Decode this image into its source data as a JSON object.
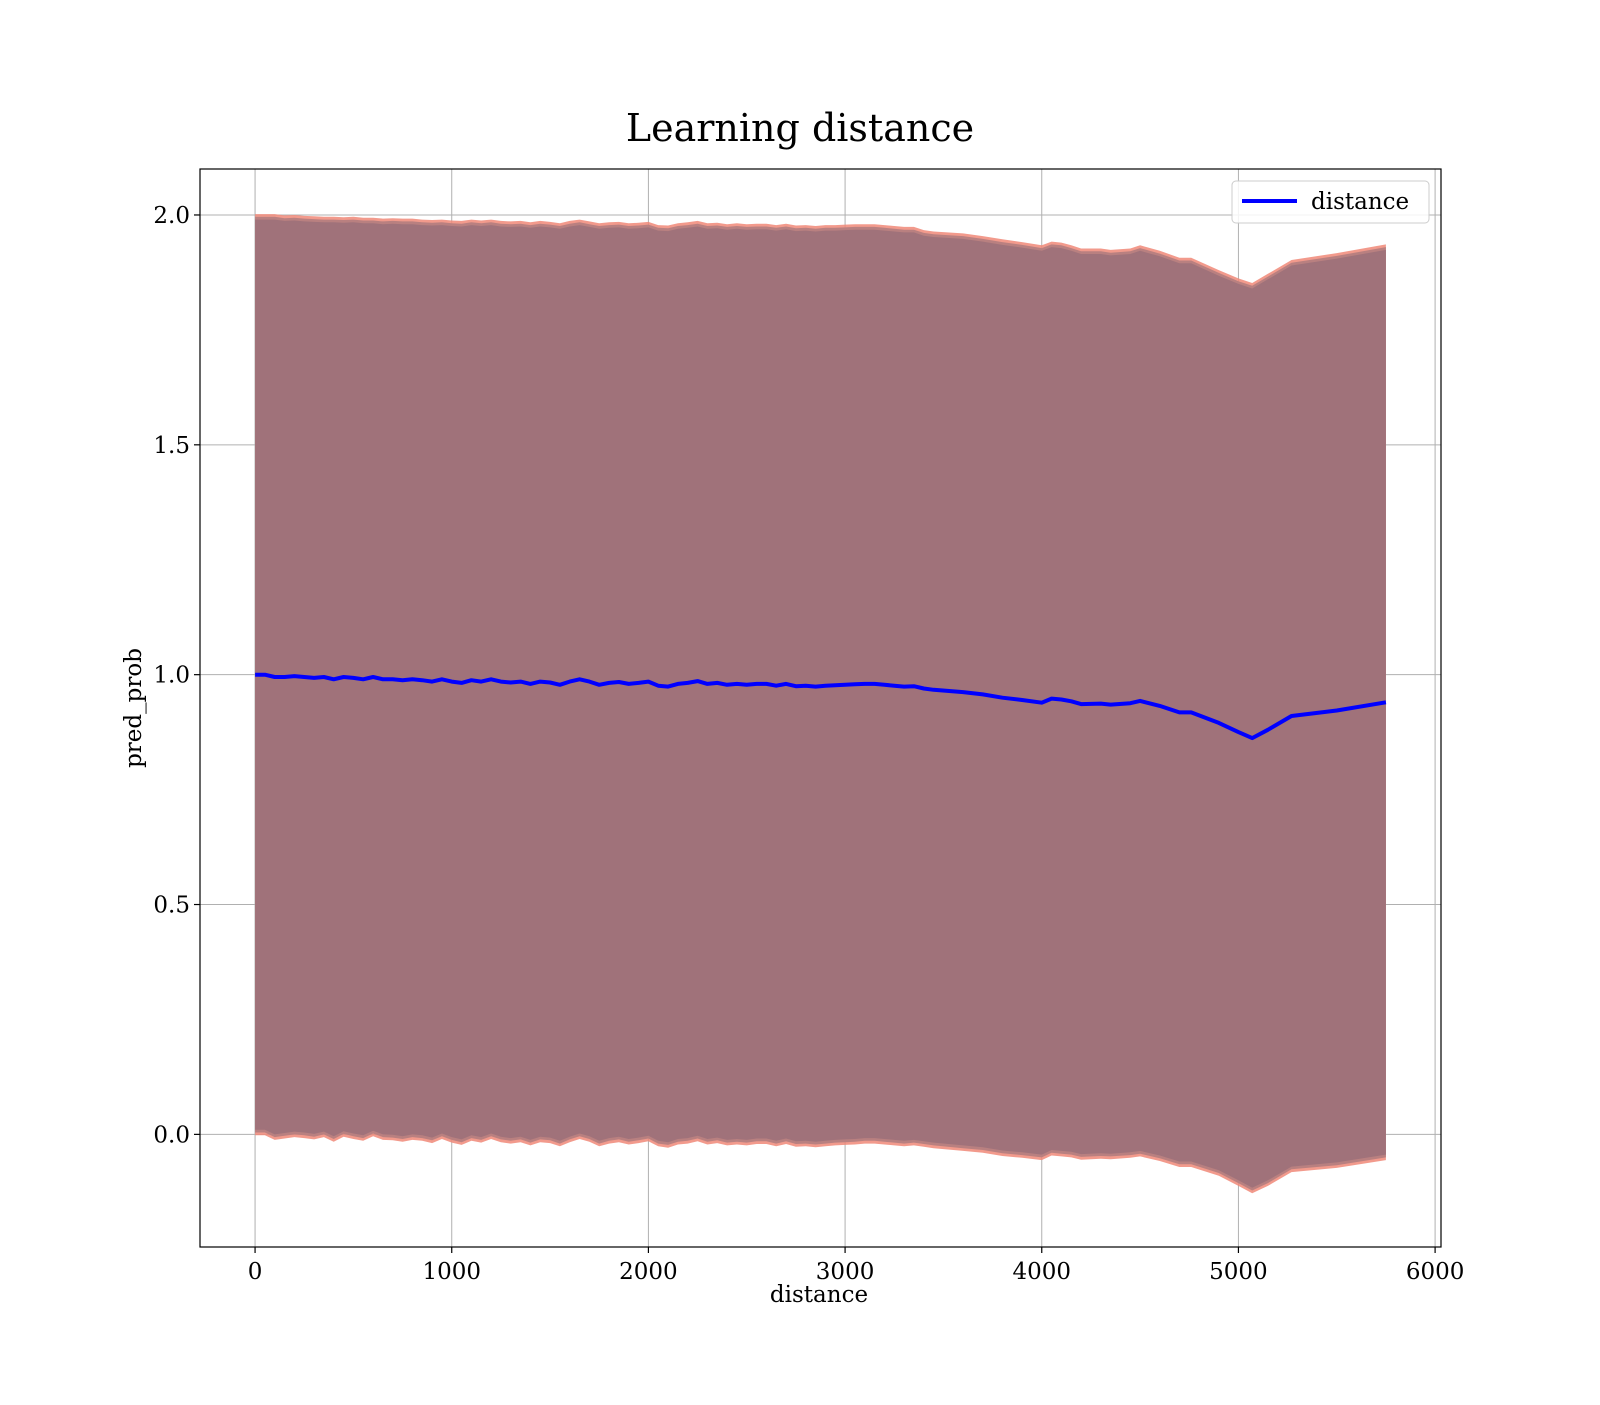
{
  "chart_data": {
    "type": "line",
    "title": "Learning distance",
    "xlabel": "distance",
    "ylabel": "pred_prob",
    "xlim": [
      -280,
      6030
    ],
    "ylim": [
      -0.245,
      2.1
    ],
    "xticks": [
      0,
      1000,
      2000,
      3000,
      4000,
      5000,
      6000
    ],
    "xtick_labels": [
      "0",
      "1000",
      "2000",
      "3000",
      "4000",
      "5000",
      "6000"
    ],
    "yticks": [
      0.0,
      0.5,
      1.0,
      1.5,
      2.0
    ],
    "ytick_labels": [
      "0.0",
      "0.5",
      "1.0",
      "1.5",
      "2.0"
    ],
    "grid": true,
    "legend": {
      "position": "top-right",
      "entries": [
        "distance"
      ]
    },
    "colors": {
      "line": "#0000ff",
      "band_fill": "#a0727a",
      "band_edge": "#f08878",
      "band_mid": "#b98080"
    },
    "series": [
      {
        "name": "distance",
        "x": [
          0,
          50,
          100,
          150,
          200,
          250,
          300,
          350,
          400,
          450,
          500,
          550,
          600,
          650,
          700,
          750,
          800,
          850,
          900,
          950,
          1000,
          1050,
          1100,
          1150,
          1200,
          1250,
          1300,
          1350,
          1400,
          1450,
          1500,
          1550,
          1600,
          1650,
          1700,
          1750,
          1800,
          1850,
          1900,
          1950,
          2000,
          2050,
          2100,
          2150,
          2200,
          2250,
          2300,
          2350,
          2400,
          2450,
          2500,
          2550,
          2600,
          2650,
          2700,
          2750,
          2800,
          2850,
          2900,
          2950,
          3000,
          3050,
          3100,
          3150,
          3200,
          3250,
          3300,
          3350,
          3400,
          3450,
          3600,
          3700,
          3800,
          3900,
          4000,
          4050,
          4100,
          4150,
          4200,
          4300,
          4350,
          4450,
          4500,
          4600,
          4700,
          4760,
          4900,
          5000,
          5070,
          5150,
          5270,
          5500,
          5750
        ],
        "values": [
          1.0,
          1.0,
          0.995,
          0.995,
          0.997,
          0.995,
          0.993,
          0.995,
          0.99,
          0.995,
          0.993,
          0.99,
          0.995,
          0.99,
          0.99,
          0.988,
          0.99,
          0.988,
          0.985,
          0.99,
          0.985,
          0.982,
          0.988,
          0.985,
          0.99,
          0.985,
          0.983,
          0.985,
          0.98,
          0.985,
          0.983,
          0.978,
          0.985,
          0.99,
          0.985,
          0.978,
          0.982,
          0.984,
          0.98,
          0.982,
          0.985,
          0.976,
          0.974,
          0.98,
          0.982,
          0.986,
          0.98,
          0.982,
          0.978,
          0.98,
          0.978,
          0.98,
          0.98,
          0.976,
          0.98,
          0.975,
          0.976,
          0.974,
          0.976,
          0.977,
          0.978,
          0.979,
          0.98,
          0.98,
          0.978,
          0.976,
          0.974,
          0.975,
          0.97,
          0.967,
          0.962,
          0.957,
          0.95,
          0.945,
          0.939,
          0.948,
          0.946,
          0.942,
          0.936,
          0.937,
          0.935,
          0.938,
          0.943,
          0.932,
          0.918,
          0.918,
          0.895,
          0.875,
          0.862,
          0.88,
          0.91,
          0.922,
          0.94
        ]
      }
    ],
    "band": {
      "upper": [
        1.99,
        1.99,
        1.99,
        1.987,
        1.988,
        1.986,
        1.985,
        1.984,
        1.984,
        1.983,
        1.984,
        1.982,
        1.982,
        1.98,
        1.981,
        1.98,
        1.98,
        1.978,
        1.977,
        1.978,
        1.976,
        1.975,
        1.978,
        1.976,
        1.978,
        1.975,
        1.974,
        1.975,
        1.972,
        1.975,
        1.973,
        1.97,
        1.975,
        1.978,
        1.974,
        1.97,
        1.972,
        1.973,
        1.97,
        1.971,
        1.973,
        1.966,
        1.965,
        1.97,
        1.972,
        1.975,
        1.97,
        1.971,
        1.968,
        1.97,
        1.968,
        1.969,
        1.969,
        1.966,
        1.969,
        1.965,
        1.966,
        1.964,
        1.966,
        1.966,
        1.967,
        1.968,
        1.968,
        1.968,
        1.966,
        1.964,
        1.962,
        1.962,
        1.955,
        1.952,
        1.948,
        1.942,
        1.935,
        1.929,
        1.922,
        1.93,
        1.928,
        1.922,
        1.915,
        1.915,
        1.912,
        1.915,
        1.922,
        1.91,
        1.895,
        1.895,
        1.868,
        1.85,
        1.84,
        1.86,
        1.89,
        1.905,
        1.924
      ],
      "lower": [
        0.01,
        0.01,
        0.0,
        0.003,
        0.006,
        0.004,
        0.001,
        0.006,
        -0.004,
        0.007,
        0.002,
        -0.002,
        0.008,
        0.0,
        -0.001,
        -0.004,
        0.0,
        -0.002,
        -0.007,
        0.002,
        -0.006,
        -0.011,
        -0.002,
        -0.006,
        0.002,
        -0.005,
        -0.008,
        -0.005,
        -0.012,
        -0.005,
        -0.007,
        -0.014,
        -0.005,
        0.002,
        -0.004,
        -0.014,
        -0.008,
        -0.005,
        -0.01,
        -0.007,
        -0.003,
        -0.014,
        -0.017,
        -0.01,
        -0.008,
        -0.003,
        -0.01,
        -0.007,
        -0.012,
        -0.01,
        -0.012,
        -0.009,
        -0.009,
        -0.014,
        -0.009,
        -0.015,
        -0.014,
        -0.016,
        -0.014,
        -0.012,
        -0.011,
        -0.01,
        -0.008,
        -0.008,
        -0.01,
        -0.012,
        -0.014,
        -0.012,
        -0.015,
        -0.018,
        -0.024,
        -0.028,
        -0.035,
        -0.039,
        -0.044,
        -0.034,
        -0.036,
        -0.038,
        -0.043,
        -0.041,
        -0.042,
        -0.039,
        -0.036,
        -0.046,
        -0.059,
        -0.059,
        -0.078,
        -0.1,
        -0.116,
        -0.1,
        -0.07,
        -0.061,
        -0.044
      ]
    }
  }
}
